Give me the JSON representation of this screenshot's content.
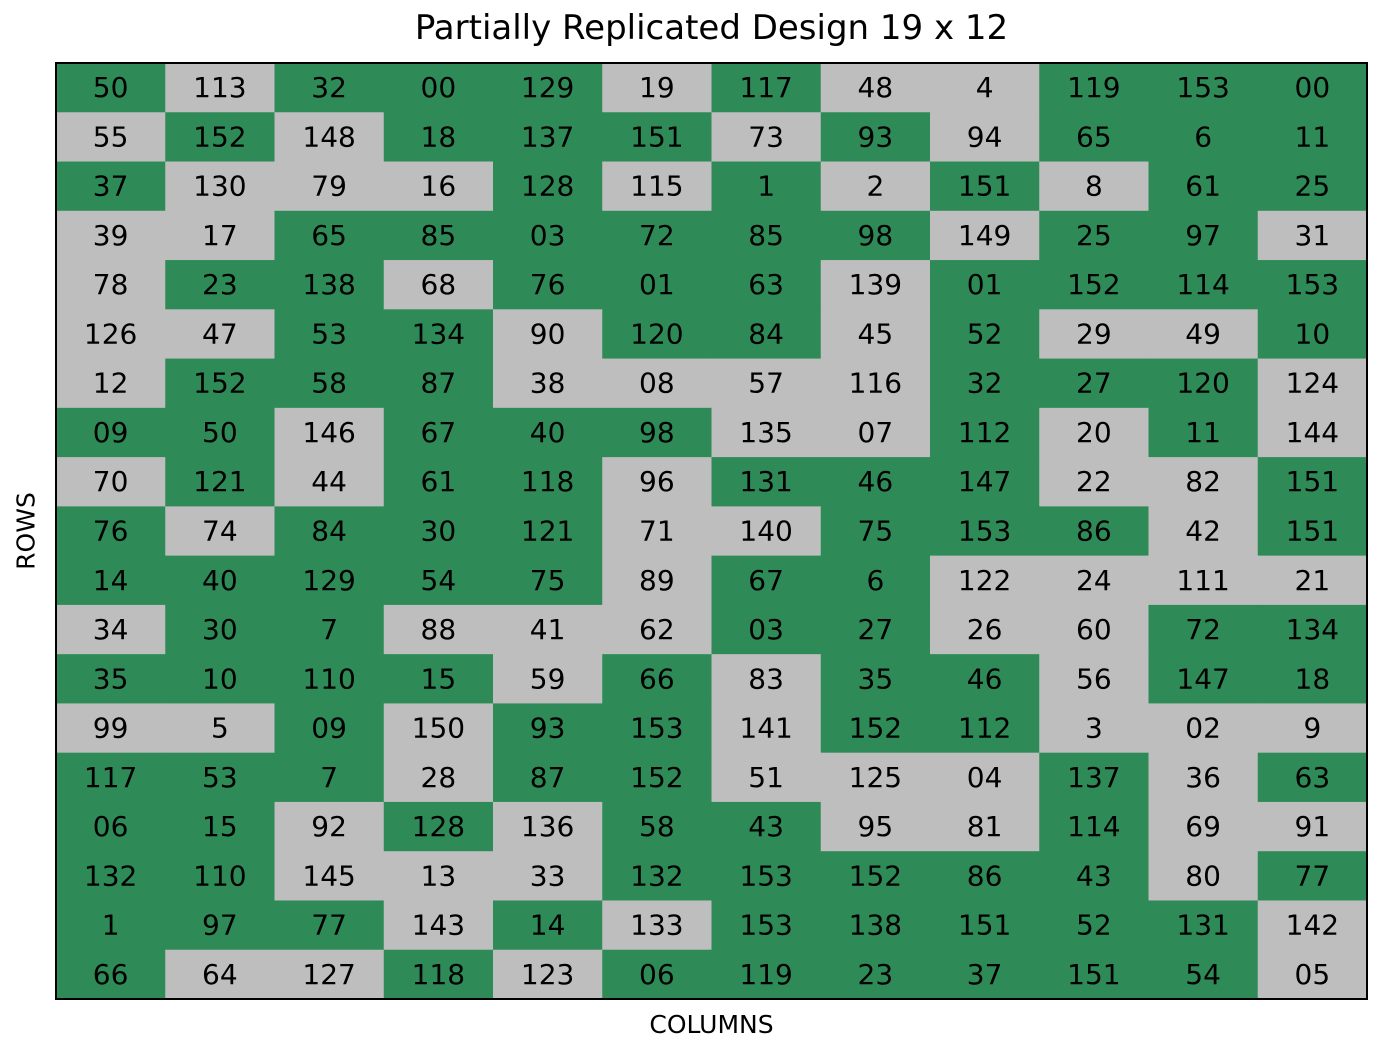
{
  "chart_data": {
    "type": "heatmap",
    "title": "Partially Replicated Design 19 x 12",
    "xlabel": "COLUMNS",
    "ylabel": "ROWS",
    "n_rows": 19,
    "n_cols": 12,
    "grid": true,
    "legend": "none",
    "colors": {
      "replicated": "#2e8b57",
      "unreplicated": "#bebebe",
      "border": "#000000"
    },
    "labels": [
      [
        "50",
        "113",
        "32",
        "00",
        "129",
        "19",
        "117",
        "48",
        "4",
        "119",
        "153",
        "00"
      ],
      [
        "55",
        "152",
        "148",
        "18",
        "137",
        "151",
        "73",
        "93",
        "94",
        "65",
        "6",
        "11"
      ],
      [
        "37",
        "130",
        "79",
        "16",
        "128",
        "115",
        "1",
        "2",
        "151",
        "8",
        "61",
        "25"
      ],
      [
        "39",
        "17",
        "65",
        "85",
        "03",
        "72",
        "85",
        "98",
        "149",
        "25",
        "97",
        "31"
      ],
      [
        "78",
        "23",
        "138",
        "68",
        "76",
        "01",
        "63",
        "139",
        "01",
        "152",
        "114",
        "153"
      ],
      [
        "126",
        "47",
        "53",
        "134",
        "90",
        "120",
        "84",
        "45",
        "52",
        "29",
        "49",
        "10"
      ],
      [
        "12",
        "152",
        "58",
        "87",
        "38",
        "08",
        "57",
        "116",
        "32",
        "27",
        "120",
        "124"
      ],
      [
        "09",
        "50",
        "146",
        "67",
        "40",
        "98",
        "135",
        "07",
        "112",
        "20",
        "11",
        "144"
      ],
      [
        "70",
        "121",
        "44",
        "61",
        "118",
        "96",
        "131",
        "46",
        "147",
        "22",
        "82",
        "151"
      ],
      [
        "76",
        "74",
        "84",
        "30",
        "121",
        "71",
        "140",
        "75",
        "153",
        "86",
        "42",
        "151"
      ],
      [
        "14",
        "40",
        "129",
        "54",
        "75",
        "89",
        "67",
        "6",
        "122",
        "24",
        "111",
        "21"
      ],
      [
        "34",
        "30",
        "7",
        "88",
        "41",
        "62",
        "03",
        "27",
        "26",
        "60",
        "72",
        "134"
      ],
      [
        "35",
        "10",
        "110",
        "15",
        "59",
        "66",
        "83",
        "35",
        "46",
        "56",
        "147",
        "18"
      ],
      [
        "99",
        "5",
        "09",
        "150",
        "93",
        "153",
        "141",
        "152",
        "112",
        "3",
        "02",
        "9"
      ],
      [
        "117",
        "53",
        "7",
        "28",
        "87",
        "152",
        "51",
        "125",
        "04",
        "137",
        "36",
        "63"
      ],
      [
        "06",
        "15",
        "92",
        "128",
        "136",
        "58",
        "43",
        "95",
        "81",
        "114",
        "69",
        "91"
      ],
      [
        "132",
        "110",
        "145",
        "13",
        "33",
        "132",
        "153",
        "152",
        "86",
        "43",
        "80",
        "77"
      ],
      [
        "1",
        "97",
        "77",
        "143",
        "14",
        "133",
        "153",
        "138",
        "151",
        "52",
        "131",
        "142"
      ],
      [
        "66",
        "64",
        "127",
        "118",
        "123",
        "06",
        "119",
        "23",
        "37",
        "151",
        "54",
        "05"
      ]
    ],
    "replicated": [
      [
        1,
        0,
        1,
        1,
        1,
        0,
        1,
        0,
        0,
        1,
        1,
        1
      ],
      [
        0,
        1,
        0,
        1,
        1,
        1,
        0,
        1,
        0,
        1,
        1,
        1
      ],
      [
        1,
        0,
        0,
        0,
        1,
        0,
        1,
        0,
        1,
        0,
        1,
        1
      ],
      [
        0,
        0,
        1,
        1,
        1,
        1,
        1,
        1,
        0,
        1,
        1,
        0
      ],
      [
        0,
        1,
        1,
        0,
        1,
        1,
        1,
        0,
        1,
        1,
        1,
        1
      ],
      [
        0,
        0,
        1,
        1,
        0,
        1,
        1,
        0,
        1,
        0,
        0,
        1
      ],
      [
        0,
        1,
        1,
        1,
        0,
        0,
        0,
        0,
        1,
        1,
        1,
        0
      ],
      [
        1,
        1,
        0,
        1,
        1,
        1,
        0,
        0,
        1,
        0,
        1,
        0
      ],
      [
        0,
        1,
        0,
        1,
        1,
        0,
        1,
        1,
        1,
        0,
        0,
        1
      ],
      [
        1,
        0,
        1,
        1,
        1,
        0,
        0,
        1,
        1,
        1,
        0,
        1
      ],
      [
        1,
        1,
        1,
        1,
        1,
        0,
        1,
        1,
        0,
        0,
        0,
        0
      ],
      [
        0,
        1,
        1,
        0,
        0,
        0,
        1,
        1,
        0,
        0,
        1,
        1
      ],
      [
        1,
        1,
        1,
        1,
        0,
        1,
        0,
        1,
        1,
        0,
        1,
        1
      ],
      [
        0,
        0,
        1,
        0,
        1,
        1,
        0,
        1,
        1,
        0,
        0,
        0
      ],
      [
        1,
        1,
        1,
        0,
        1,
        1,
        0,
        0,
        0,
        1,
        0,
        1
      ],
      [
        1,
        1,
        0,
        1,
        0,
        1,
        1,
        0,
        0,
        1,
        0,
        0
      ],
      [
        1,
        1,
        0,
        0,
        0,
        1,
        1,
        1,
        1,
        1,
        0,
        1
      ],
      [
        1,
        1,
        1,
        0,
        1,
        0,
        1,
        1,
        1,
        1,
        1,
        0
      ],
      [
        1,
        0,
        0,
        1,
        0,
        1,
        1,
        1,
        1,
        1,
        1,
        0
      ]
    ]
  }
}
